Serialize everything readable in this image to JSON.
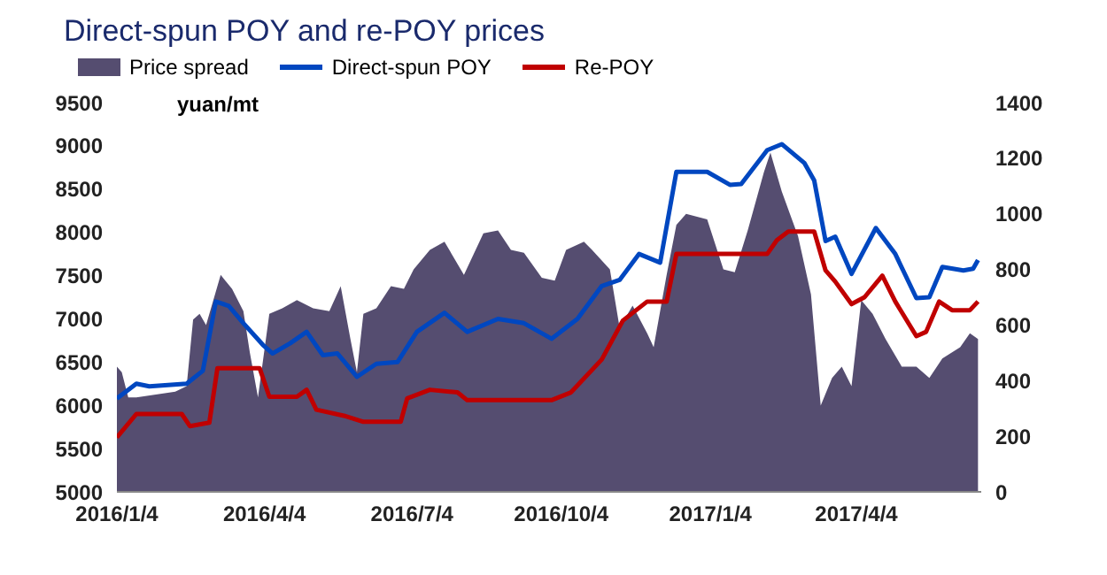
{
  "chart_data": {
    "type": "line",
    "title": "Direct-spun POY and re-POY prices",
    "ylabel": "yuan/mt",
    "legend": "top left",
    "xlim": [
      "2016-01-04",
      "2017-06-20"
    ],
    "xticks": [
      {
        "value": "2016-01-04",
        "label": "2016/1/4"
      },
      {
        "value": "2016-04-04",
        "label": "2016/4/4"
      },
      {
        "value": "2016-07-04",
        "label": "2016/7/4"
      },
      {
        "value": "2016-10-04",
        "label": "2016/10/4"
      },
      {
        "value": "2017-01-04",
        "label": "2017/1/4"
      },
      {
        "value": "2017-04-04",
        "label": "2017/4/4"
      }
    ],
    "ylim": [
      5000,
      9500
    ],
    "yticks": [
      5000,
      5500,
      6000,
      6500,
      7000,
      7500,
      8000,
      8500,
      9000,
      9500
    ],
    "y2lim": [
      0,
      1400
    ],
    "y2ticks": [
      0,
      200,
      400,
      600,
      800,
      1000,
      1200,
      1400
    ],
    "series": [
      {
        "name": "Price spread",
        "type": "area",
        "axis": "y2",
        "color": "#554d70",
        "x": [
          "2016-01-04",
          "2016-01-07",
          "2016-01-11",
          "2016-01-16",
          "2016-02-09",
          "2016-02-16",
          "2016-02-20",
          "2016-02-24",
          "2016-02-28",
          "2016-03-08",
          "2016-03-15",
          "2016-03-22",
          "2016-03-26",
          "2016-03-31",
          "2016-04-07",
          "2016-04-15",
          "2016-04-24",
          "2016-05-04",
          "2016-05-14",
          "2016-05-21",
          "2016-05-27",
          "2016-05-31",
          "2016-06-04",
          "2016-06-12",
          "2016-06-21",
          "2016-06-29",
          "2016-07-05",
          "2016-07-15",
          "2016-07-24",
          "2016-08-05",
          "2016-08-17",
          "2016-08-26",
          "2016-09-03",
          "2016-09-11",
          "2016-09-22",
          "2016-09-30",
          "2016-10-07",
          "2016-10-18",
          "2016-10-23",
          "2016-11-03",
          "2016-11-09",
          "2016-11-17",
          "2016-11-26",
          "2016-11-30",
          "2016-12-08",
          "2016-12-14",
          "2016-12-20",
          "2017-01-02",
          "2017-01-12",
          "2017-01-19",
          "2017-01-27",
          "2017-02-06",
          "2017-02-10",
          "2017-02-17",
          "2017-02-27",
          "2017-03-07",
          "2017-03-13",
          "2017-03-20",
          "2017-03-26",
          "2017-04-01",
          "2017-04-07",
          "2017-04-14",
          "2017-04-22",
          "2017-05-02",
          "2017-05-11",
          "2017-05-19",
          "2017-05-27",
          "2017-06-07",
          "2017-06-13",
          "2017-06-18"
        ],
        "values": [
          450,
          430,
          340,
          340,
          360,
          380,
          620,
          640,
          600,
          780,
          730,
          650,
          500,
          340,
          640,
          660,
          690,
          660,
          650,
          740,
          550,
          430,
          640,
          660,
          740,
          730,
          800,
          870,
          900,
          780,
          930,
          940,
          870,
          860,
          770,
          760,
          870,
          900,
          870,
          800,
          590,
          670,
          570,
          520,
          780,
          960,
          1000,
          980,
          800,
          790,
          940,
          1150,
          1220,
          1080,
          920,
          710,
          310,
          410,
          450,
          380,
          690,
          640,
          550,
          450,
          450,
          410,
          480,
          520,
          570,
          550
        ]
      },
      {
        "name": "Direct-spun POY",
        "color": "#0047c0",
        "x": [
          "2016-01-04",
          "2016-01-16",
          "2016-01-24",
          "2016-02-16",
          "2016-02-26",
          "2016-03-05",
          "2016-03-13",
          "2016-03-22",
          "2016-04-03",
          "2016-04-09",
          "2016-04-20",
          "2016-04-30",
          "2016-05-10",
          "2016-05-19",
          "2016-05-31",
          "2016-06-12",
          "2016-06-25",
          "2016-07-07",
          "2016-07-24",
          "2016-08-07",
          "2016-08-26",
          "2016-09-11",
          "2016-09-28",
          "2016-10-14",
          "2016-10-29",
          "2016-11-09",
          "2016-11-21",
          "2016-12-04",
          "2016-12-14",
          "2017-01-02",
          "2017-01-16",
          "2017-01-23",
          "2017-02-08",
          "2017-02-17",
          "2017-03-03",
          "2017-03-09",
          "2017-03-16",
          "2017-03-22",
          "2017-04-01",
          "2017-04-16",
          "2017-04-20",
          "2017-04-28",
          "2017-05-11",
          "2017-05-19",
          "2017-05-27",
          "2017-06-09",
          "2017-06-15",
          "2017-06-18"
        ],
        "values": [
          6080,
          6250,
          6220,
          6250,
          6400,
          7200,
          7150,
          6950,
          6700,
          6600,
          6720,
          6850,
          6580,
          6600,
          6330,
          6480,
          6500,
          6850,
          7070,
          6850,
          7000,
          6950,
          6770,
          7000,
          7380,
          7450,
          7750,
          7650,
          8700,
          8700,
          8550,
          8560,
          8950,
          9020,
          8800,
          8600,
          7900,
          7950,
          7520,
          8050,
          7950,
          7750,
          7240,
          7250,
          7600,
          7560,
          7580,
          7680
        ]
      },
      {
        "name": "Re-POY",
        "color": "#c00000",
        "x": [
          "2016-01-04",
          "2016-01-16",
          "2016-02-13",
          "2016-02-18",
          "2016-03-01",
          "2016-03-06",
          "2016-04-01",
          "2016-04-07",
          "2016-04-24",
          "2016-04-30",
          "2016-05-06",
          "2016-05-23",
          "2016-06-04",
          "2016-06-27",
          "2016-07-01",
          "2016-07-15",
          "2016-08-01",
          "2016-08-07",
          "2016-09-28",
          "2016-10-10",
          "2016-10-29",
          "2016-11-11",
          "2016-11-26",
          "2016-12-08",
          "2016-12-14",
          "2017-02-08",
          "2017-02-14",
          "2017-02-21",
          "2017-03-09",
          "2017-03-16",
          "2017-03-22",
          "2017-04-01",
          "2017-04-09",
          "2017-04-20",
          "2017-04-28",
          "2017-05-11",
          "2017-05-17",
          "2017-05-25",
          "2017-06-02",
          "2017-06-13",
          "2017-06-18"
        ],
        "values": [
          5630,
          5900,
          5900,
          5760,
          5800,
          6430,
          6430,
          6100,
          6100,
          6180,
          5950,
          5880,
          5810,
          5810,
          6080,
          6180,
          6150,
          6060,
          6060,
          6150,
          6530,
          6980,
          7200,
          7200,
          7750,
          7750,
          7910,
          8010,
          8010,
          7560,
          7430,
          7170,
          7250,
          7500,
          7200,
          6800,
          6850,
          7200,
          7100,
          7100,
          7200
        ]
      }
    ]
  }
}
